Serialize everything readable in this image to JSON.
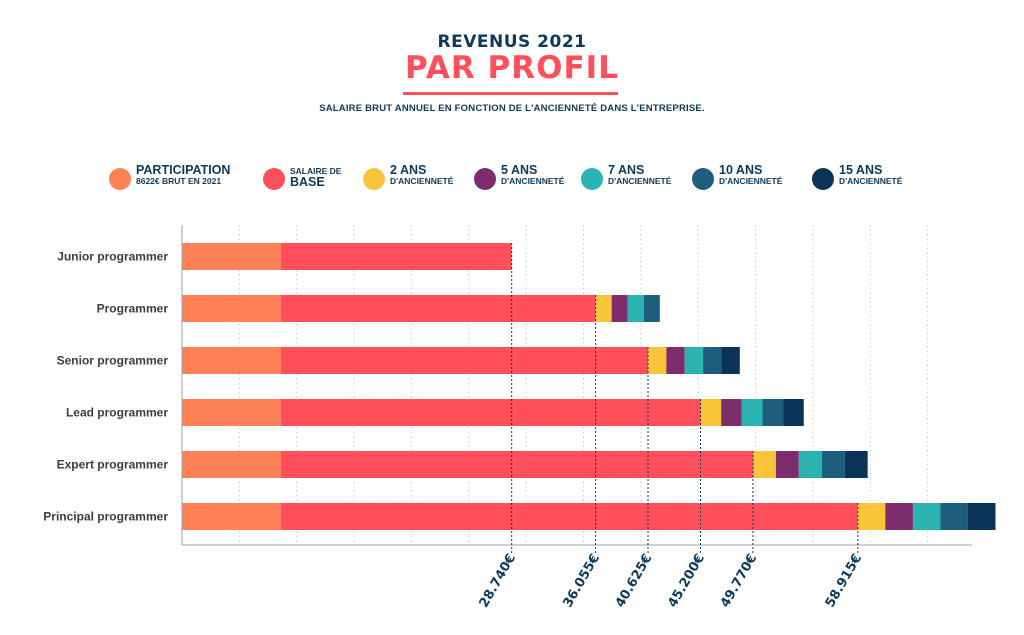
{
  "header": {
    "title_top": "REVENUS 2021",
    "title_main": "PAR PROFIL",
    "subtitle": "SALAIRE BRUT ANNUEL EN FONCTION DE L'ANCIENNETÉ DANS L'ENTREPRISE."
  },
  "legend": [
    {
      "line1": "PARTICIPATION",
      "line2": "8622€ BRUT EN 2021",
      "color": "#ff8257"
    },
    {
      "line1": "SALAIRE DE",
      "line2": "BASE",
      "color": "#ff4f5a"
    },
    {
      "line1": "2 ANS",
      "line2": "D'ANCIENNETÉ",
      "color": "#f8c43a"
    },
    {
      "line1": "5 ANS",
      "line2": "D'ANCIENNETÉ",
      "color": "#7d2d6b"
    },
    {
      "line1": "7 ANS",
      "line2": "D'ANCIENNETÉ",
      "color": "#2ab3b1"
    },
    {
      "line1": "10 ANS",
      "line2": "D'ANCIENNETÉ",
      "color": "#1d5e7e"
    },
    {
      "line1": "15 ANS",
      "line2": "D'ANCIENNETÉ",
      "color": "#0b3358"
    }
  ],
  "chart_data": {
    "type": "bar",
    "orientation": "horizontal",
    "stacked": true,
    "categories": [
      "Junior programmer",
      "Programmer",
      "Senior programmer",
      "Lead programmer",
      "Expert programmer",
      "Principal programmer"
    ],
    "series": [
      {
        "name": "PARTICIPATION",
        "color": "#ff8257",
        "values": [
          8622,
          8622,
          8622,
          8622,
          8622,
          8622
        ]
      },
      {
        "name": "SALAIRE DE BASE",
        "color": "#ff4f5a",
        "values": [
          20118,
          27433,
          32003,
          36578,
          41148,
          50293
        ]
      },
      {
        "name": "2 ANS D'ANCIENNETÉ",
        "color": "#f8c43a",
        "values": [
          0,
          1400,
          1600,
          1800,
          2000,
          2400
        ]
      },
      {
        "name": "5 ANS D'ANCIENNETÉ",
        "color": "#7d2d6b",
        "values": [
          0,
          1400,
          1600,
          1800,
          2000,
          2400
        ]
      },
      {
        "name": "7 ANS D'ANCIENNETÉ",
        "color": "#2ab3b1",
        "values": [
          0,
          1400,
          1600,
          1800,
          2000,
          2400
        ]
      },
      {
        "name": "10 ANS D'ANCIENNETÉ",
        "color": "#1d5e7e",
        "values": [
          0,
          1400,
          1600,
          1800,
          2000,
          2400
        ]
      },
      {
        "name": "15 ANS D'ANCIENNETÉ",
        "color": "#0b3358",
        "values": [
          0,
          0,
          1600,
          1800,
          2000,
          2400
        ]
      }
    ],
    "threshold_labels": [
      "28.740€",
      "36.055€",
      "40.625€",
      "45.200€",
      "49.770€",
      "58.915€"
    ],
    "threshold_values": [
      28740,
      36055,
      40625,
      45200,
      49770,
      58915
    ],
    "xlim": [
      0,
      70000
    ],
    "grid": true
  }
}
